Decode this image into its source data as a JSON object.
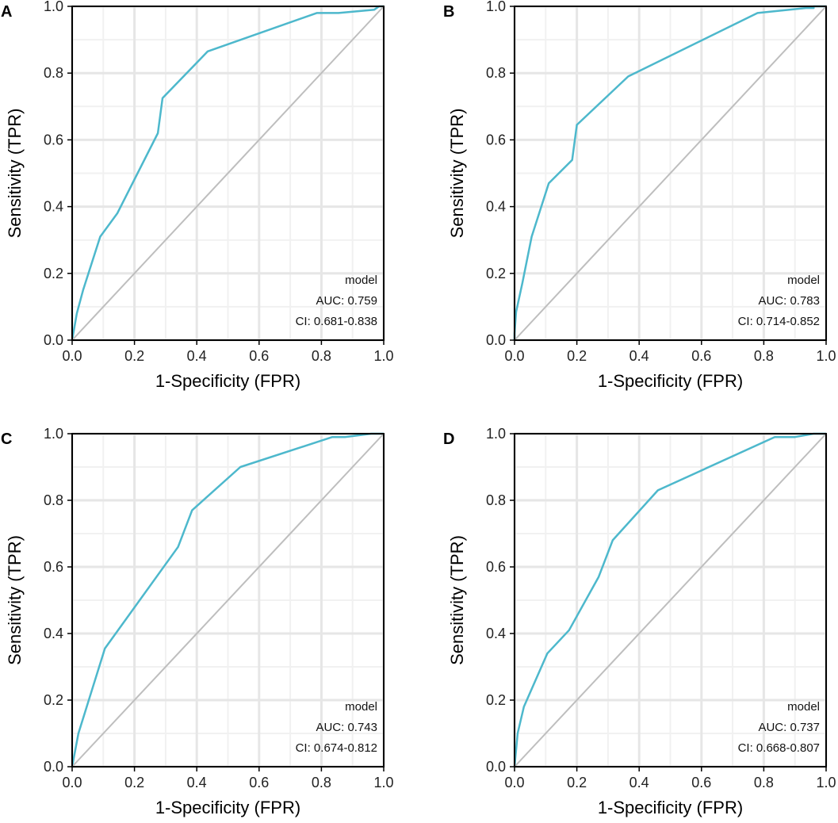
{
  "colors": {
    "roc_line": "#4DB8CC",
    "diagonal": "#BEBEBE",
    "grid_major": "#E6E6E6",
    "grid_minor": "#F1F1F1",
    "frame": "#000000"
  },
  "chart_data": [
    {
      "type": "line",
      "panel": "A",
      "xlabel": "1-Specificity (FPR)",
      "ylabel": "Sensitivity (TPR)",
      "xlim": [
        0,
        1
      ],
      "ylim": [
        0,
        1
      ],
      "xticks": [
        "0.0",
        "0.2",
        "0.4",
        "0.6",
        "0.8",
        "1.0"
      ],
      "yticks": [
        "0.0",
        "0.2",
        "0.4",
        "0.6",
        "0.8",
        "1.0"
      ],
      "grid": true,
      "legend_position": "bottom-right",
      "legend": {
        "title": "model",
        "auc": "AUC: 0.759",
        "ci": "CI: 0.681-0.838"
      },
      "series": [
        {
          "name": "model",
          "x": [
            0.0,
            0.015,
            0.035,
            0.09,
            0.145,
            0.275,
            0.29,
            0.435,
            0.785,
            0.855,
            0.97,
            0.985,
            1.0
          ],
          "y": [
            0.0,
            0.08,
            0.15,
            0.31,
            0.38,
            0.62,
            0.725,
            0.865,
            0.98,
            0.98,
            0.99,
            1.0,
            1.0
          ]
        },
        {
          "name": "reference",
          "x": [
            0,
            1
          ],
          "y": [
            0,
            1
          ]
        }
      ]
    },
    {
      "type": "line",
      "panel": "B",
      "xlabel": "1-Specificity (FPR)",
      "ylabel": "Sensitivity (TPR)",
      "xlim": [
        0,
        1
      ],
      "ylim": [
        0,
        1
      ],
      "xticks": [
        "0.0",
        "0.2",
        "0.4",
        "0.6",
        "0.8",
        "1.0"
      ],
      "yticks": [
        "0.0",
        "0.2",
        "0.4",
        "0.6",
        "0.8",
        "1.0"
      ],
      "grid": true,
      "legend_position": "bottom-right",
      "legend": {
        "title": "model",
        "auc": "AUC: 0.783",
        "ci": "CI: 0.714-0.852"
      },
      "series": [
        {
          "name": "model",
          "x": [
            0.0,
            0.0,
            0.005,
            0.025,
            0.055,
            0.11,
            0.185,
            0.2,
            0.365,
            0.78,
            0.935,
            0.96,
            0.96,
            1.0
          ],
          "y": [
            0.0,
            0.02,
            0.085,
            0.17,
            0.31,
            0.47,
            0.54,
            0.645,
            0.79,
            0.98,
            0.995,
            0.995,
            1.0,
            1.0
          ]
        },
        {
          "name": "reference",
          "x": [
            0,
            1
          ],
          "y": [
            0,
            1
          ]
        }
      ]
    },
    {
      "type": "line",
      "panel": "C",
      "xlabel": "1-Specificity (FPR)",
      "ylabel": "Sensitivity (TPR)",
      "xlim": [
        0,
        1
      ],
      "ylim": [
        0,
        1
      ],
      "xticks": [
        "0.0",
        "0.2",
        "0.4",
        "0.6",
        "0.8",
        "1.0"
      ],
      "yticks": [
        "0.0",
        "0.2",
        "0.4",
        "0.6",
        "0.8",
        "1.0"
      ],
      "grid": true,
      "legend_position": "bottom-right",
      "legend": {
        "title": "model",
        "auc": "AUC: 0.743",
        "ci": "CI: 0.674-0.812"
      },
      "series": [
        {
          "name": "model",
          "x": [
            0.0,
            0.02,
            0.105,
            0.34,
            0.385,
            0.54,
            0.835,
            0.875,
            0.96,
            1.0
          ],
          "y": [
            0.0,
            0.1,
            0.355,
            0.66,
            0.77,
            0.9,
            0.99,
            0.99,
            1.0,
            1.0
          ]
        },
        {
          "name": "reference",
          "x": [
            0,
            1
          ],
          "y": [
            0,
            1
          ]
        }
      ]
    },
    {
      "type": "line",
      "panel": "D",
      "xlabel": "1-Specificity (FPR)",
      "ylabel": "Sensitivity (TPR)",
      "xlim": [
        0,
        1
      ],
      "ylim": [
        0,
        1
      ],
      "xticks": [
        "0.0",
        "0.2",
        "0.4",
        "0.6",
        "0.8",
        "1.0"
      ],
      "yticks": [
        "0.0",
        "0.2",
        "0.4",
        "0.6",
        "0.8",
        "1.0"
      ],
      "grid": true,
      "legend_position": "bottom-right",
      "legend": {
        "title": "model",
        "auc": "AUC: 0.737",
        "ci": "CI: 0.668-0.807"
      },
      "series": [
        {
          "name": "model",
          "x": [
            0.0,
            0.01,
            0.03,
            0.105,
            0.175,
            0.27,
            0.315,
            0.46,
            0.835,
            0.9,
            0.96,
            1.0
          ],
          "y": [
            0.0,
            0.1,
            0.18,
            0.34,
            0.41,
            0.57,
            0.68,
            0.83,
            0.99,
            0.99,
            1.0,
            1.0
          ]
        },
        {
          "name": "reference",
          "x": [
            0,
            1
          ],
          "y": [
            0,
            1
          ]
        }
      ]
    }
  ]
}
